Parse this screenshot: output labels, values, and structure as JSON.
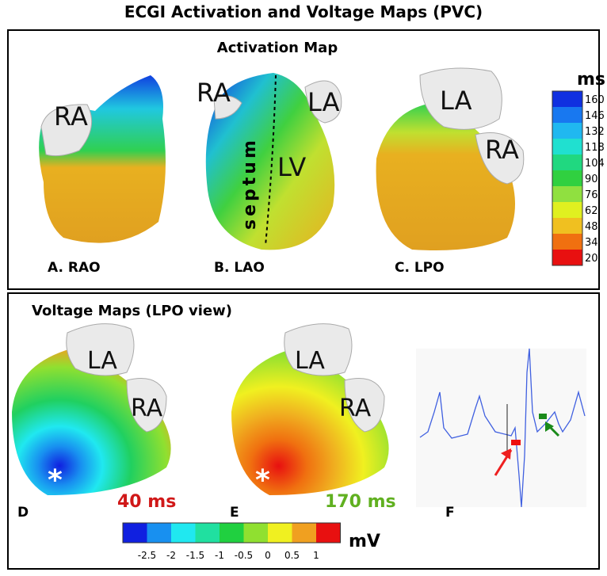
{
  "title": "ECGI Activation and Voltage Maps (PVC)",
  "activation": {
    "title": "Activation Map",
    "unit": "ms",
    "views": [
      {
        "label": "A. RAO",
        "chambers": [
          "RA"
        ]
      },
      {
        "label": "B. LAO",
        "chambers": [
          "RA",
          "LA",
          "LV"
        ],
        "annotation": "septum"
      },
      {
        "label": "C. LPO",
        "chambers": [
          "LA",
          "RA"
        ]
      }
    ],
    "colorbar": {
      "ticks": [
        160,
        146,
        132,
        118,
        104,
        90,
        76,
        62,
        48,
        34,
        20
      ],
      "colors": [
        "#1030e0",
        "#1878f0",
        "#20b8f0",
        "#20e0d0",
        "#20d880",
        "#30d040",
        "#90e040",
        "#e0f020",
        "#f0c020",
        "#f07010",
        "#e81010"
      ]
    }
  },
  "voltage": {
    "title": "Voltage Maps (LPO view)",
    "unit": "mV",
    "views": [
      {
        "label": "D",
        "time": "40 ms",
        "chambers": [
          "LA",
          "RA"
        ],
        "marker": "*"
      },
      {
        "label": "E",
        "time": "170 ms",
        "chambers": [
          "LA",
          "RA"
        ],
        "marker": "*"
      }
    ],
    "colorbar": {
      "ticks": [
        -2.5,
        -2,
        -1.5,
        -1,
        -0.5,
        0,
        0.5,
        1
      ],
      "colors": [
        "#1020e0",
        "#1890f0",
        "#20e8f0",
        "#20e0a0",
        "#20d040",
        "#90e030",
        "#f0f020",
        "#f0a020",
        "#e81010"
      ]
    }
  },
  "ecg": {
    "label": "F"
  }
}
